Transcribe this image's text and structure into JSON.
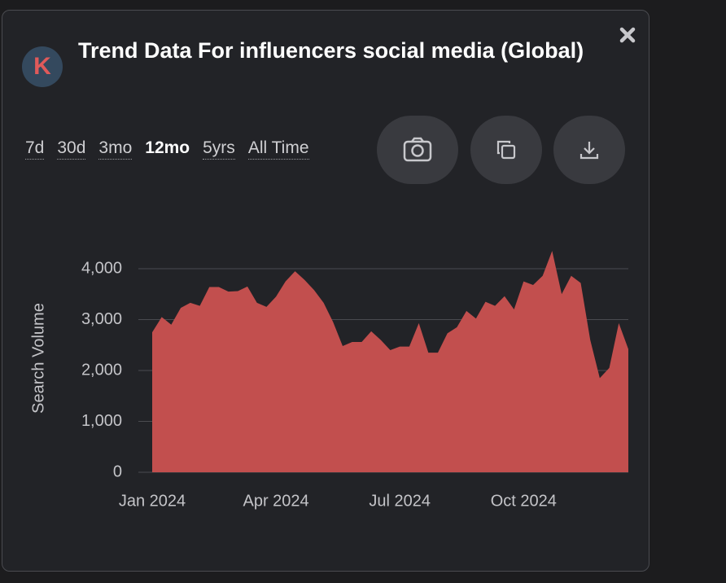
{
  "logo": "K",
  "header": {
    "title": "Trend Data For influencers social media (Global)"
  },
  "tabs": [
    "7d",
    "30d",
    "3mo",
    "12mo",
    "5yrs",
    "All Time"
  ],
  "chart_data": {
    "type": "area",
    "ylabel": "Search Volume",
    "categories": [
      "Jan 2024",
      null,
      null,
      null,
      null,
      null,
      null,
      null,
      null,
      null,
      null,
      null,
      null,
      "Apr 2024",
      null,
      null,
      null,
      null,
      null,
      null,
      null,
      null,
      null,
      null,
      null,
      null,
      "Jul 2024",
      null,
      null,
      null,
      null,
      null,
      null,
      null,
      null,
      null,
      null,
      null,
      null,
      "Oct 2024",
      null,
      null,
      null,
      null,
      null,
      null,
      null,
      null,
      null,
      null,
      null
    ],
    "values": [
      2750,
      3050,
      2900,
      3230,
      3330,
      3270,
      3640,
      3640,
      3550,
      3560,
      3650,
      3330,
      3250,
      3450,
      3750,
      3950,
      3780,
      3580,
      3330,
      2950,
      2480,
      2560,
      2560,
      2770,
      2600,
      2400,
      2470,
      2470,
      2930,
      2350,
      2350,
      2730,
      2850,
      3170,
      3020,
      3350,
      3270,
      3460,
      3200,
      3750,
      3680,
      3860,
      4350,
      3500,
      3860,
      3720,
      2600,
      1850,
      2050,
      2930,
      2420
    ],
    "color": "#c24f4e",
    "ylim": [
      0,
      4000
    ],
    "yticks": [
      0,
      {
        "value": 1000,
        "label": "1,000"
      },
      {
        "value": 2000,
        "label": "2,000"
      },
      {
        "value": 3000,
        "label": "3,000"
      },
      {
        "value": 4000,
        "label": "4,000"
      }
    ],
    "grid": true
  }
}
